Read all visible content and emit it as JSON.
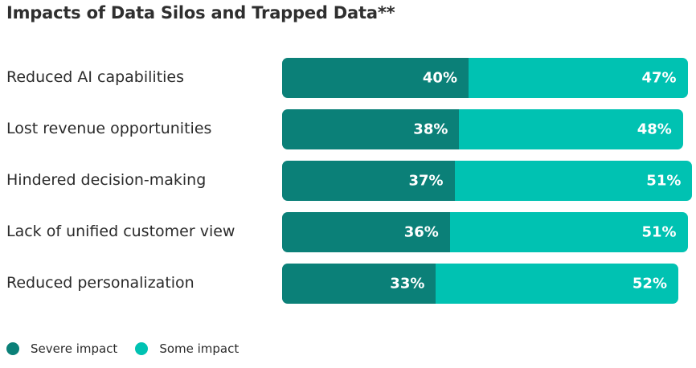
{
  "chart_data": {
    "type": "bar",
    "orientation": "horizontal",
    "stacked": true,
    "title": "Impacts of Data Silos and Trapped Data**",
    "categories": [
      "Reduced AI capabilities",
      "Lost revenue opportunities",
      "Hindered decision-making",
      "Lack of unified customer view",
      "Reduced personalization"
    ],
    "series": [
      {
        "name": "Severe impact",
        "color": "#0b8078",
        "values": [
          40,
          38,
          37,
          36,
          33
        ],
        "labels": [
          "40%",
          "38%",
          "37%",
          "36%",
          "33%"
        ]
      },
      {
        "name": "Some impact",
        "color": "#00c2b2",
        "values": [
          47,
          48,
          51,
          51,
          52
        ],
        "labels": [
          "47%",
          "48%",
          "51%",
          "51%",
          "52%"
        ]
      }
    ],
    "unit": "%",
    "grid": false,
    "legend_position": "bottom-left"
  }
}
